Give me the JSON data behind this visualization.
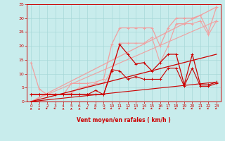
{
  "bg_color": "#c8ecec",
  "grid_color": "#a8d8d8",
  "text_color": "#cc0000",
  "xlabel": "Vent moyen/en rafales ( km/h )",
  "xlim": [
    -0.5,
    23.5
  ],
  "ylim": [
    0,
    35
  ],
  "ytick_vals": [
    0,
    5,
    10,
    15,
    20,
    25,
    30,
    35
  ],
  "xtick_vals": [
    0,
    1,
    2,
    3,
    4,
    5,
    6,
    7,
    8,
    9,
    10,
    11,
    12,
    13,
    14,
    15,
    16,
    17,
    18,
    19,
    20,
    21,
    22,
    23
  ],
  "lines": [
    {
      "x": [
        0,
        1,
        2,
        3,
        4,
        5,
        6,
        7,
        8,
        9,
        10,
        11,
        12,
        13,
        14,
        15,
        16,
        17,
        18,
        19,
        20,
        21,
        22,
        23
      ],
      "y": [
        14,
        4.5,
        2.5,
        2.5,
        2.5,
        6.5,
        6.5,
        6.5,
        7,
        8,
        20.5,
        26.5,
        26.5,
        26.5,
        26.5,
        26.5,
        20,
        26.5,
        30,
        30,
        30,
        31,
        25,
        34
      ],
      "color": "#f0a0a0",
      "lw": 0.9,
      "marker": "+",
      "ms": 3,
      "zorder": 2
    },
    {
      "x": [
        0,
        1,
        2,
        3,
        4,
        5,
        6,
        7,
        8,
        9,
        10,
        11,
        12,
        13,
        14,
        15,
        16,
        17,
        18,
        19,
        20,
        21,
        22,
        23
      ],
      "y": [
        2.5,
        2.5,
        2.5,
        2.5,
        2.5,
        3,
        5,
        5.5,
        6.5,
        6.5,
        11,
        21,
        21,
        21,
        21,
        23,
        14,
        20,
        28,
        28,
        28,
        29,
        24,
        29
      ],
      "color": "#f0a0a0",
      "lw": 0.8,
      "marker": "+",
      "ms": 2.5,
      "zorder": 2
    },
    {
      "x": [
        0,
        23
      ],
      "y": [
        0,
        34
      ],
      "color": "#f0a0a0",
      "lw": 0.9,
      "marker": null,
      "ms": 0,
      "zorder": 3
    },
    {
      "x": [
        0,
        23
      ],
      "y": [
        0,
        29
      ],
      "color": "#f0a0a0",
      "lw": 0.8,
      "marker": null,
      "ms": 0,
      "zorder": 3
    },
    {
      "x": [
        0,
        23
      ],
      "y": [
        0,
        17
      ],
      "color": "#cc0000",
      "lw": 0.9,
      "marker": null,
      "ms": 0,
      "zorder": 4
    },
    {
      "x": [
        0,
        23
      ],
      "y": [
        0,
        7
      ],
      "color": "#cc0000",
      "lw": 0.8,
      "marker": null,
      "ms": 0,
      "zorder": 4
    },
    {
      "x": [
        0,
        1,
        2,
        3,
        4,
        5,
        6,
        7,
        8,
        9,
        10,
        11,
        12,
        13,
        14,
        15,
        16,
        17,
        18,
        19,
        20,
        21,
        22,
        23
      ],
      "y": [
        2.5,
        2.5,
        2.5,
        2.5,
        2.5,
        2.5,
        2.5,
        2.5,
        2.5,
        2.5,
        11,
        20.5,
        17,
        13.5,
        14,
        11,
        14,
        17,
        17,
        6,
        17,
        6,
        6,
        7
      ],
      "color": "#cc0000",
      "lw": 0.9,
      "marker": "+",
      "ms": 3,
      "zorder": 5
    },
    {
      "x": [
        0,
        1,
        2,
        3,
        4,
        5,
        6,
        7,
        8,
        9,
        10,
        11,
        12,
        13,
        14,
        15,
        16,
        17,
        18,
        19,
        20,
        21,
        22,
        23
      ],
      "y": [
        2.5,
        2.5,
        2.5,
        2.5,
        2.5,
        2.5,
        2.5,
        2.5,
        4,
        2.5,
        11.5,
        11,
        8,
        9,
        8,
        8,
        8,
        12,
        12,
        5.5,
        12,
        5.5,
        5.5,
        6.5
      ],
      "color": "#cc0000",
      "lw": 0.8,
      "marker": "+",
      "ms": 2.5,
      "zorder": 5
    }
  ],
  "wind_arrows": {
    "x": [
      0,
      1,
      2,
      3,
      4,
      5,
      6,
      7,
      8,
      9,
      10,
      11,
      12,
      13,
      14,
      15,
      16,
      17,
      18,
      19,
      20,
      21,
      22,
      23
    ],
    "angles": [
      90,
      90,
      135,
      135,
      90,
      90,
      90,
      135,
      135,
      180,
      225,
      225,
      225,
      225,
      225,
      225,
      225,
      225,
      225,
      225,
      225,
      225,
      225,
      225
    ]
  }
}
